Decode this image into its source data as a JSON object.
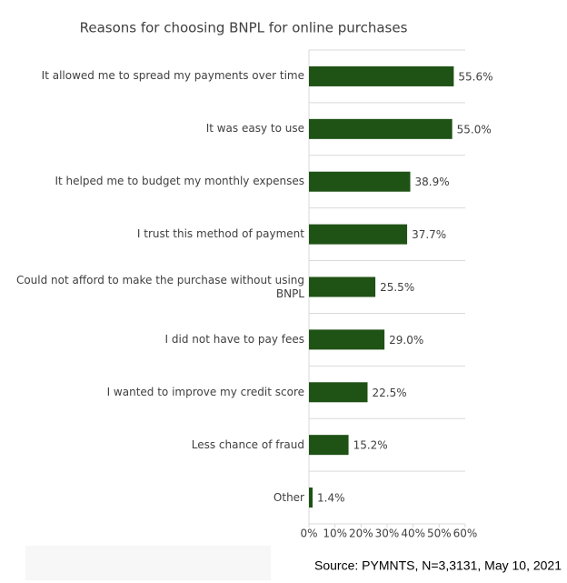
{
  "chart_data": {
    "type": "bar",
    "orientation": "horizontal",
    "title": "Reasons for choosing BNPL for online purchases",
    "categories": [
      "It allowed me to spread my payments over time",
      "It was easy to use",
      "It helped me to budget my monthly expenses",
      "I trust this method of payment",
      "Could not afford to make the purchase without using BNPL",
      "I did not have to pay fees",
      "I wanted to improve my credit score",
      "Less chance of fraud",
      "Other"
    ],
    "values": [
      55.6,
      55.0,
      38.9,
      37.7,
      25.5,
      29.0,
      22.5,
      15.2,
      1.4
    ],
    "value_labels": [
      "55.6%",
      "55.0%",
      "38.9%",
      "37.7%",
      "25.5%",
      "29.0%",
      "22.5%",
      "15.2%",
      "1.4%"
    ],
    "color": "#1f5215",
    "xlim": [
      0,
      60
    ],
    "xticks": [
      {
        "value": 0,
        "label": "0%"
      },
      {
        "value": 10,
        "label": "10%"
      },
      {
        "value": 20,
        "label": "20%"
      },
      {
        "value": 30,
        "label": "30%"
      },
      {
        "value": 40,
        "label": "40%"
      },
      {
        "value": 50,
        "label": "50%"
      },
      {
        "value": 60,
        "label": "60%"
      }
    ],
    "source": "Source: PYMNTS, N=3,3131, May 10, 2021"
  }
}
